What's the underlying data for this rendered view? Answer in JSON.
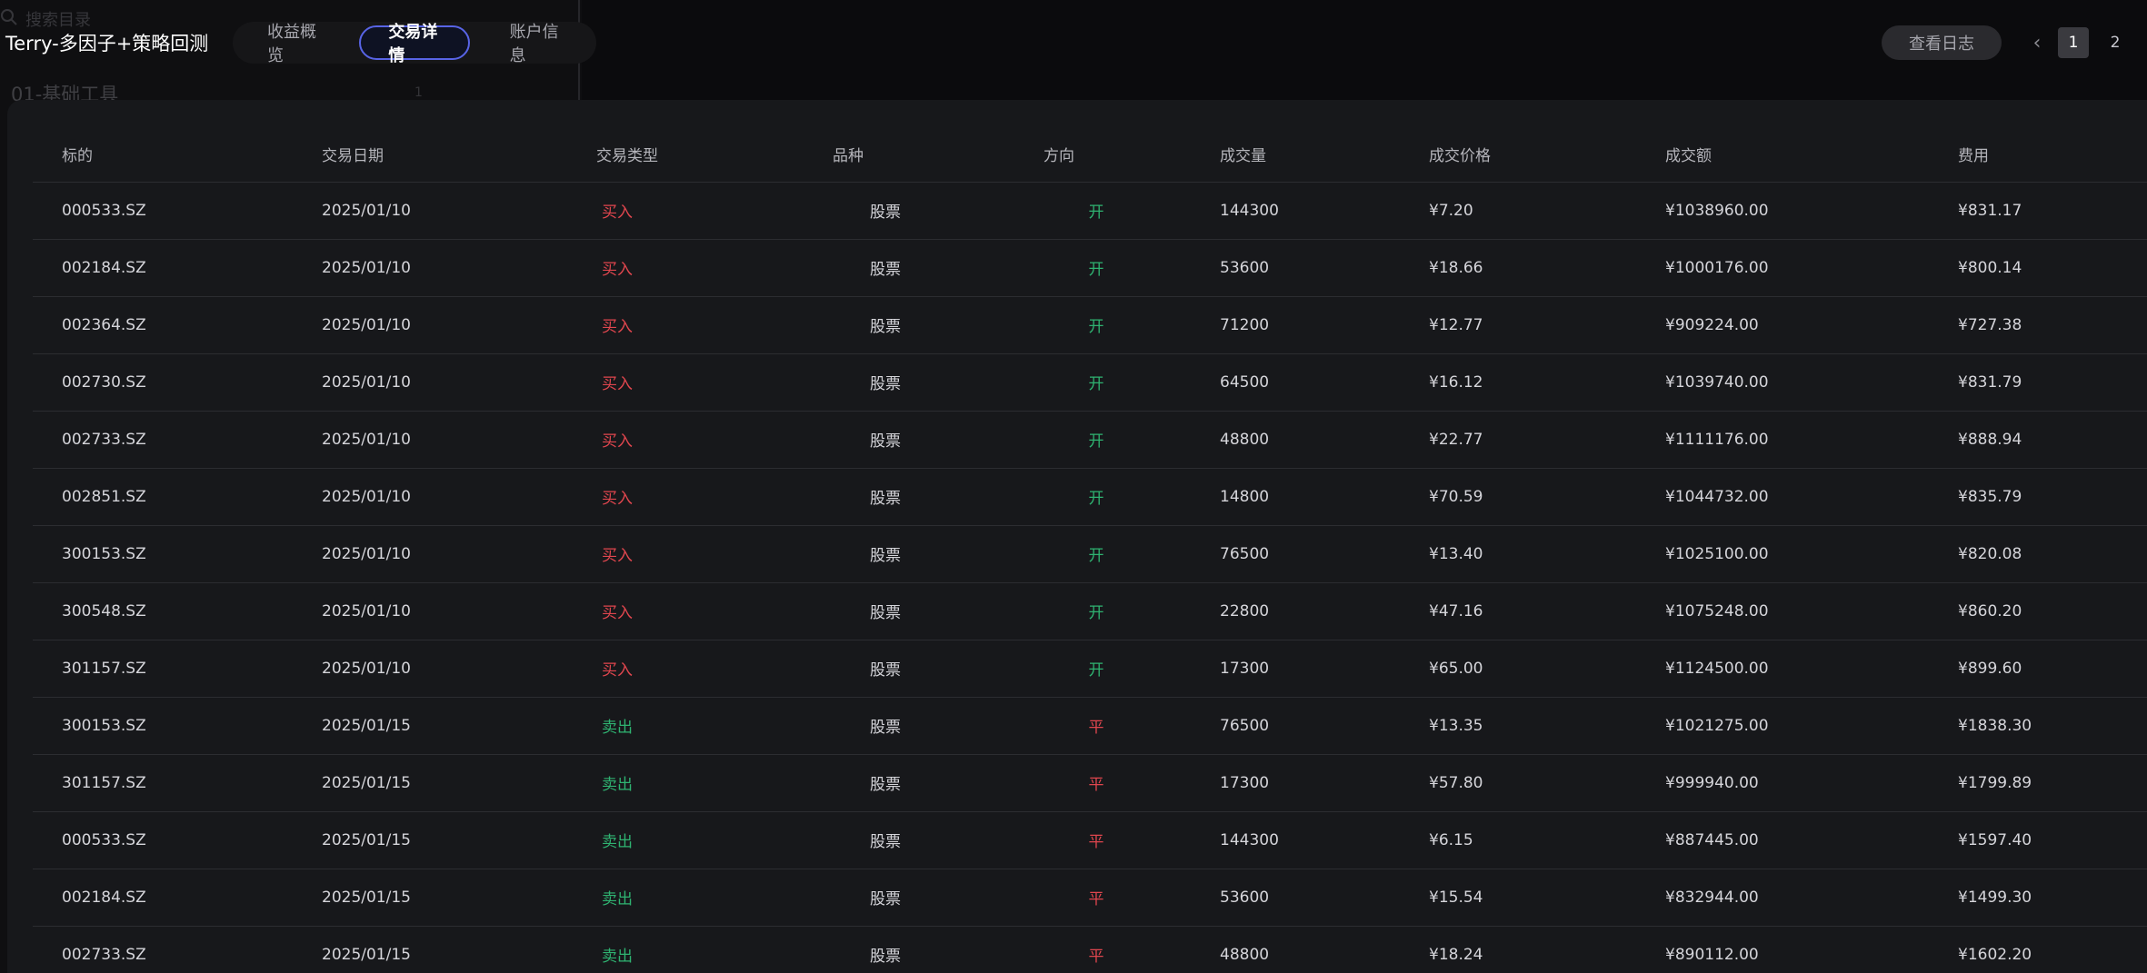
{
  "background": {
    "search_placeholder": "搜索目录",
    "section_title": "01-基础工具",
    "section_count": "1"
  },
  "header": {
    "title": "Terry-多因子+策略回测",
    "tabs": [
      {
        "label": "收益概览",
        "active": false
      },
      {
        "label": "交易详情",
        "active": true
      },
      {
        "label": "账户信息",
        "active": false
      }
    ],
    "log_button": "查看日志",
    "pages": [
      "1",
      "2"
    ],
    "current_page": "1"
  },
  "table": {
    "columns": [
      "标的",
      "交易日期",
      "交易类型",
      "品种",
      "方向",
      "成交量",
      "成交价格",
      "成交额",
      "费用"
    ],
    "rows": [
      [
        "000533.SZ",
        "2025/01/10",
        "买入",
        "股票",
        "开",
        "144300",
        "¥7.20",
        "¥1038960.00",
        "¥831.17"
      ],
      [
        "002184.SZ",
        "2025/01/10",
        "买入",
        "股票",
        "开",
        "53600",
        "¥18.66",
        "¥1000176.00",
        "¥800.14"
      ],
      [
        "002364.SZ",
        "2025/01/10",
        "买入",
        "股票",
        "开",
        "71200",
        "¥12.77",
        "¥909224.00",
        "¥727.38"
      ],
      [
        "002730.SZ",
        "2025/01/10",
        "买入",
        "股票",
        "开",
        "64500",
        "¥16.12",
        "¥1039740.00",
        "¥831.79"
      ],
      [
        "002733.SZ",
        "2025/01/10",
        "买入",
        "股票",
        "开",
        "48800",
        "¥22.77",
        "¥1111176.00",
        "¥888.94"
      ],
      [
        "002851.SZ",
        "2025/01/10",
        "买入",
        "股票",
        "开",
        "14800",
        "¥70.59",
        "¥1044732.00",
        "¥835.79"
      ],
      [
        "300153.SZ",
        "2025/01/10",
        "买入",
        "股票",
        "开",
        "76500",
        "¥13.40",
        "¥1025100.00",
        "¥820.08"
      ],
      [
        "300548.SZ",
        "2025/01/10",
        "买入",
        "股票",
        "开",
        "22800",
        "¥47.16",
        "¥1075248.00",
        "¥860.20"
      ],
      [
        "301157.SZ",
        "2025/01/10",
        "买入",
        "股票",
        "开",
        "17300",
        "¥65.00",
        "¥1124500.00",
        "¥899.60"
      ],
      [
        "300153.SZ",
        "2025/01/15",
        "卖出",
        "股票",
        "平",
        "76500",
        "¥13.35",
        "¥1021275.00",
        "¥1838.30"
      ],
      [
        "301157.SZ",
        "2025/01/15",
        "卖出",
        "股票",
        "平",
        "17300",
        "¥57.80",
        "¥999940.00",
        "¥1799.89"
      ],
      [
        "000533.SZ",
        "2025/01/15",
        "卖出",
        "股票",
        "平",
        "144300",
        "¥6.15",
        "¥887445.00",
        "¥1597.40"
      ],
      [
        "002184.SZ",
        "2025/01/15",
        "卖出",
        "股票",
        "平",
        "53600",
        "¥15.54",
        "¥832944.00",
        "¥1499.30"
      ],
      [
        "002733.SZ",
        "2025/01/15",
        "卖出",
        "股票",
        "平",
        "48800",
        "¥18.24",
        "¥890112.00",
        "¥1602.20"
      ]
    ]
  },
  "colors": {
    "buy": "#e0464e",
    "sell": "#2fb371",
    "accent": "#5864e6"
  }
}
